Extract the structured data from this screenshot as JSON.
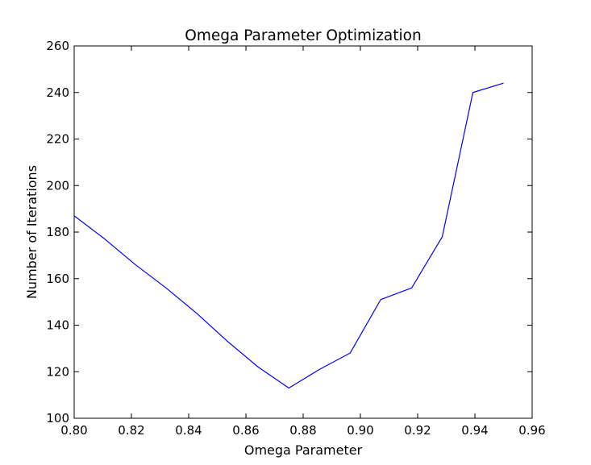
{
  "chart_data": {
    "type": "line",
    "title": "Omega Parameter Optimization",
    "xlabel": "Omega Parameter",
    "ylabel": "Number of Iterations",
    "xlim": [
      0.8,
      0.96
    ],
    "ylim": [
      100,
      260
    ],
    "xticks": [
      "0.80",
      "0.82",
      "0.84",
      "0.86",
      "0.88",
      "0.90",
      "0.92",
      "0.94",
      "0.96"
    ],
    "yticks": [
      "100",
      "120",
      "140",
      "160",
      "180",
      "200",
      "220",
      "240",
      "260"
    ],
    "grid": false,
    "series": [
      {
        "color": "#0000ff",
        "x": [
          0.8,
          0.8107,
          0.8214,
          0.8321,
          0.8429,
          0.8536,
          0.8643,
          0.875,
          0.8857,
          0.8964,
          0.9071,
          0.9179,
          0.9286,
          0.9393,
          0.95
        ],
        "y": [
          187,
          177,
          166,
          156,
          145,
          133,
          122,
          113,
          121,
          128,
          151,
          156,
          178,
          240,
          244
        ]
      }
    ]
  }
}
